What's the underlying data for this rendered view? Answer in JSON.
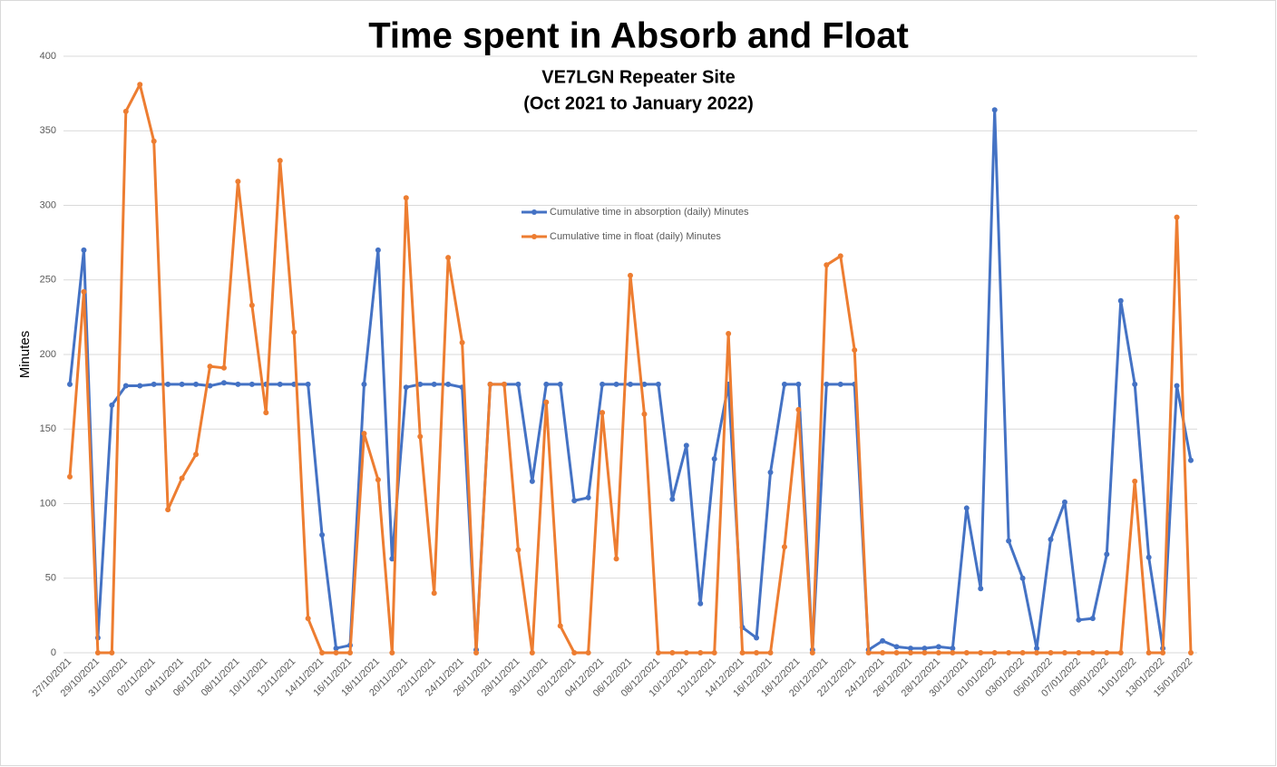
{
  "chart_data": {
    "type": "line",
    "title": "Time spent in Absorb and Float",
    "subtitle": [
      "VE7LGN Repeater Site",
      "(Oct 2021 to January 2022)"
    ],
    "ylabel": "Minutes",
    "categories": [
      "27/10/2021",
      null,
      "29/10/2021",
      null,
      "31/10/2021",
      null,
      "02/11/2021",
      null,
      "04/11/2021",
      null,
      "06/11/2021",
      null,
      "08/11/2021",
      null,
      "10/11/2021",
      null,
      "12/11/2021",
      null,
      "14/11/2021",
      null,
      "16/11/2021",
      null,
      "18/11/2021",
      null,
      "20/11/2021",
      null,
      "22/11/2021",
      null,
      "24/11/2021",
      null,
      "26/11/2021",
      null,
      "28/11/2021",
      null,
      "30/11/2021",
      null,
      "02/12/2021",
      null,
      "04/12/2021",
      null,
      "06/12/2021",
      null,
      "08/12/2021",
      null,
      "10/12/2021",
      null,
      "12/12/2021",
      null,
      "14/12/2021",
      null,
      "16/12/2021",
      null,
      "18/12/2021",
      null,
      "20/12/2021",
      null,
      "22/12/2021",
      null,
      "24/12/2021",
      null,
      "26/12/2021",
      null,
      "28/12/2021",
      null,
      "30/12/2021",
      null,
      "01/01/2022",
      null,
      "03/01/2022",
      null,
      "05/01/2022",
      null,
      "07/01/2022",
      null,
      "09/01/2022",
      null,
      "11/01/2022",
      null,
      "13/01/2022",
      null,
      "15/01/2022"
    ],
    "series": [
      {
        "name": "Cumulative time in absorption (daily) Minutes",
        "color": "#4472c4",
        "values": [
          180,
          270,
          10,
          166,
          179,
          179,
          180,
          180,
          180,
          180,
          179,
          181,
          180,
          180,
          180,
          180,
          180,
          180,
          79,
          3,
          5,
          180,
          270,
          63,
          178,
          180,
          180,
          180,
          178,
          2,
          180,
          180,
          180,
          115,
          180,
          180,
          102,
          104,
          180,
          180,
          180,
          180,
          180,
          103,
          139,
          33,
          130,
          180,
          17,
          10,
          121,
          180,
          180,
          2,
          180,
          180,
          180,
          2,
          8,
          4,
          3,
          3,
          4,
          3,
          97,
          43,
          364,
          75,
          50,
          3,
          76,
          101,
          22,
          23,
          66,
          236,
          180,
          64,
          3,
          179,
          129
        ]
      },
      {
        "name": "Cumulative time in float (daily) Minutes",
        "color": "#ed7d31",
        "values": [
          118,
          242,
          0,
          0,
          363,
          381,
          343,
          96,
          117,
          133,
          192,
          191,
          316,
          233,
          161,
          330,
          215,
          23,
          0,
          0,
          0,
          147,
          116,
          0,
          305,
          145,
          40,
          265,
          208,
          0,
          180,
          180,
          69,
          0,
          168,
          18,
          0,
          0,
          161,
          63,
          253,
          160,
          0,
          0,
          0,
          0,
          0,
          214,
          0,
          0,
          0,
          71,
          163,
          0,
          260,
          266,
          203,
          0,
          0,
          0,
          0,
          0,
          0,
          0,
          0,
          0,
          0,
          0,
          0,
          0,
          0,
          0,
          0,
          0,
          0,
          0,
          115,
          0,
          0,
          292,
          0
        ]
      }
    ],
    "ylim": [
      0,
      400
    ],
    "yticks": [
      0,
      50,
      100,
      150,
      200,
      250,
      300,
      350,
      400
    ],
    "grid": true
  }
}
